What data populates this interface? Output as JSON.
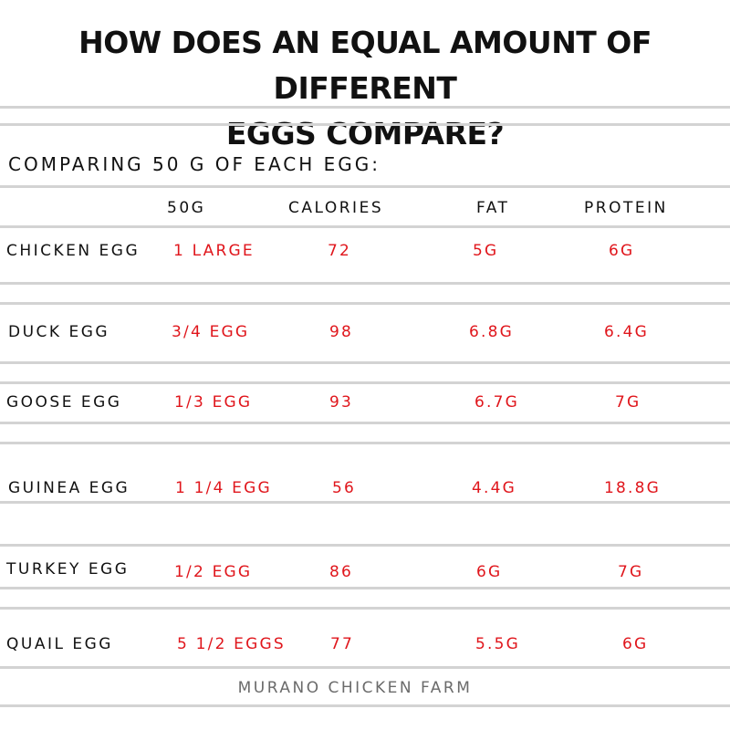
{
  "title": {
    "line1": "HOW DOES AN EQUAL AMOUNT OF DIFFERENT",
    "line2": "EGGS COMPARE?"
  },
  "subtitle": "COMPARING 50 G OF EACH EGG:",
  "headers": {
    "amount": "50G",
    "calories": "CALORIES",
    "fat": "FAT",
    "protein": "PROTEIN"
  },
  "rows": [
    {
      "name": "CHICKEN EGG",
      "amount": "1 LARGE",
      "calories": "72",
      "fat": "5G",
      "protein": "6G"
    },
    {
      "name": "DUCK EGG",
      "amount": "3/4 EGG",
      "calories": "98",
      "fat": "6.8G",
      "protein": "6.4G"
    },
    {
      "name": "GOOSE EGG",
      "amount": "1/3 EGG",
      "calories": "93",
      "fat": "6.7G",
      "protein": "7G"
    },
    {
      "name": "GUINEA EGG",
      "amount": "1 1/4 EGG",
      "calories": "56",
      "fat": "4.4G",
      "protein": "18.8G"
    },
    {
      "name": "TURKEY EGG",
      "amount": "1/2 EGG",
      "calories": "86",
      "fat": "6G",
      "protein": "7G"
    },
    {
      "name": "QUAIL EGG",
      "amount": "5 1/2 EGGS",
      "calories": "77",
      "fat": "5.5G",
      "protein": "6G"
    }
  ],
  "footer": "MURANO CHICKEN FARM",
  "colors": {
    "value_red": "#e0161c",
    "rule_gray": "#d3d3d3",
    "footer_gray": "#6b6b6b"
  }
}
